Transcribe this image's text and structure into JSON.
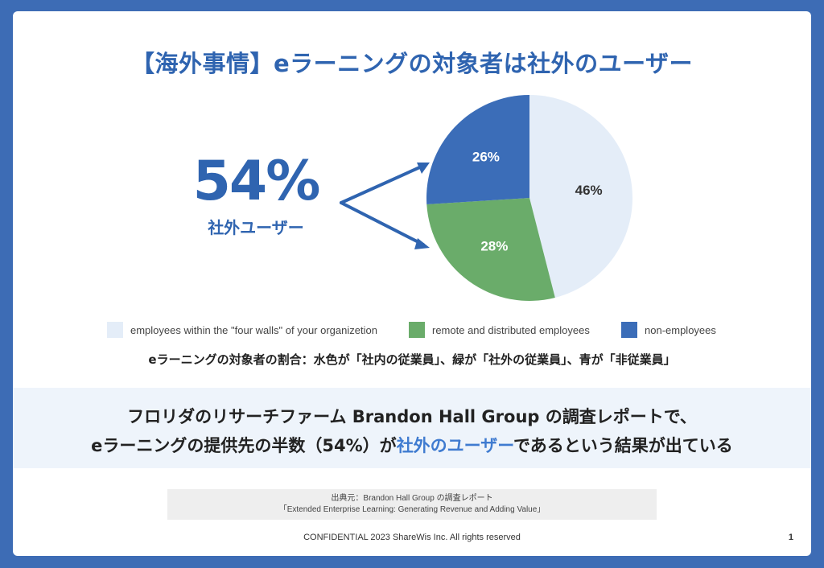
{
  "slide": {
    "title": "【海外事情】eラーニングの対象者は社外のユーザー",
    "highlight_value": "54%",
    "highlight_label": "社外ユーザー",
    "caption": "eラーニングの対象者の割合：水色が「社内の従業員」、緑が「社外の従業員」、青が「非従業員」",
    "band": {
      "line1": "フロリダのリサーチファーム Brandon Hall Group の調査レポートで、",
      "line2_before": "eラーニングの提供先の半数（54%）が",
      "line2_highlight": "社外のユーザー",
      "line2_after": "であるという結果が出ている"
    },
    "source": {
      "line1": "出典元：Brandon Hall Group の調査レポート",
      "line2": "「Extended Enterprise Learning: Generating Revenue and Adding Value」"
    },
    "footer": "CONFIDENTIAL 2023 ShareWis Inc. All rights reserved",
    "page_number": "1"
  },
  "colors": {
    "accent": "#2f64b0",
    "highlight": "#3f7bd0",
    "employees": "#e4edf8",
    "remote": "#6aac6a",
    "non_employees": "#3b6db8"
  },
  "chart_data": {
    "type": "pie",
    "legend_position": "bottom",
    "slices": [
      {
        "name": "employees within the \"four walls\" of your organizetion",
        "value": 46,
        "label": "46%",
        "color": "#e4edf8",
        "label_color": "#333333"
      },
      {
        "name": "remote and distributed employees",
        "value": 28,
        "label": "28%",
        "color": "#6aac6a",
        "label_color": "#ffffff"
      },
      {
        "name": "non-employees",
        "value": 26,
        "label": "26%",
        "color": "#3b6db8",
        "label_color": "#ffffff"
      }
    ]
  }
}
